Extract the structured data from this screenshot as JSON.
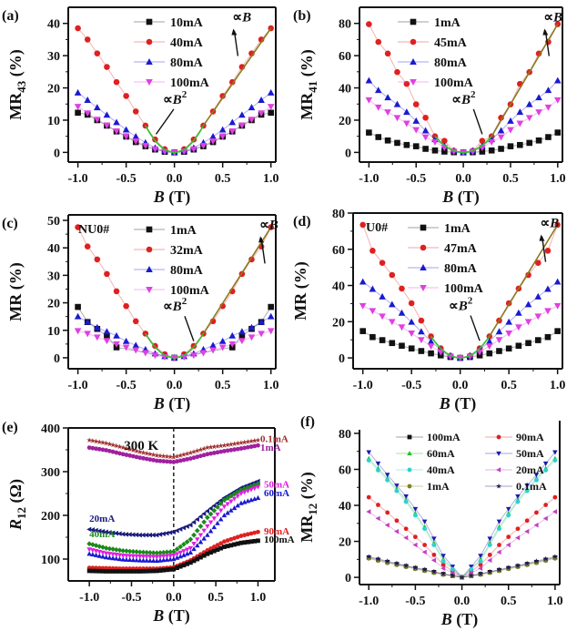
{
  "chart_data": [
    {
      "panel": "(a)",
      "type": "scatter",
      "xlabel": "B (T)",
      "ylabel": "MR43 (%)",
      "xlim": [
        -1.1,
        1.05
      ],
      "ylim": [
        -3,
        45
      ],
      "xticks": [
        -1.0,
        -0.5,
        0.0,
        0.5,
        1.0
      ],
      "yticks": [
        0,
        10,
        20,
        30,
        40
      ],
      "legend": "top-center",
      "annotations": [
        "∝B",
        "∝B²"
      ],
      "x": [
        -1.0,
        -0.9,
        -0.8,
        -0.7,
        -0.6,
        -0.5,
        -0.4,
        -0.3,
        -0.2,
        -0.1,
        0.0,
        0.1,
        0.2,
        0.3,
        0.4,
        0.5,
        0.6,
        0.7,
        0.8,
        0.9,
        1.0
      ],
      "series": [
        {
          "name": "10mA",
          "marker": "square",
          "color": "#111111",
          "values": [
            12.3,
            11.7,
            10.0,
            8.3,
            6.5,
            4.9,
            3.2,
            1.9,
            0.9,
            0.2,
            0,
            0.2,
            0.9,
            1.9,
            3.2,
            4.9,
            6.5,
            8.3,
            10.0,
            11.7,
            12.3
          ]
        },
        {
          "name": "40mA",
          "marker": "circle",
          "color": "#e02020",
          "values": [
            38.5,
            35.0,
            30.7,
            26.5,
            21.8,
            17.5,
            12.7,
            8.3,
            4.0,
            1.0,
            0,
            1.0,
            4.0,
            8.3,
            12.7,
            17.5,
            21.8,
            26.5,
            30.7,
            35.0,
            38.5
          ]
        },
        {
          "name": "80mA",
          "marker": "triangle-up",
          "color": "#1a1ad0",
          "values": [
            18.5,
            16.2,
            13.9,
            11.6,
            9.3,
            7.0,
            4.9,
            3.0,
            1.4,
            0.4,
            0,
            0.4,
            1.4,
            3.0,
            4.9,
            7.0,
            9.3,
            11.6,
            13.9,
            16.2,
            18.5
          ]
        },
        {
          "name": "100mA",
          "marker": "triangle-down",
          "color": "#e040e0",
          "values": [
            14.2,
            12.2,
            10.2,
            8.4,
            6.6,
            5.0,
            3.5,
            2.1,
            1.0,
            0.3,
            0,
            0.3,
            1.0,
            2.1,
            3.5,
            5.0,
            6.6,
            8.4,
            10.2,
            12.2,
            14.2
          ]
        }
      ]
    },
    {
      "panel": "(b)",
      "type": "scatter",
      "xlabel": "B (T)",
      "ylabel": "MR41 (%)",
      "xlim": [
        -1.1,
        1.05
      ],
      "ylim": [
        -6,
        90
      ],
      "xticks": [
        -1.0,
        -0.5,
        0.0,
        0.5,
        1.0
      ],
      "yticks": [
        0,
        20,
        40,
        60,
        80
      ],
      "legend": "top-center",
      "annotations": [
        "∝B",
        "∝B²"
      ],
      "x": [
        -1.0,
        -0.9,
        -0.8,
        -0.7,
        -0.6,
        -0.5,
        -0.4,
        -0.3,
        -0.2,
        -0.1,
        0.0,
        0.1,
        0.2,
        0.3,
        0.4,
        0.5,
        0.6,
        0.7,
        0.8,
        0.9,
        1.0
      ],
      "series": [
        {
          "name": "1mA",
          "marker": "square",
          "color": "#111111",
          "values": [
            12.3,
            9.5,
            7.4,
            5.9,
            4.6,
            3.8,
            2.2,
            1.2,
            0.5,
            0.1,
            0,
            0.1,
            0.5,
            1.2,
            2.2,
            3.8,
            4.6,
            5.9,
            7.4,
            9.5,
            12.3
          ]
        },
        {
          "name": "45mA",
          "marker": "circle",
          "color": "#e02020",
          "values": [
            79.5,
            68.5,
            61.3,
            49.8,
            42.5,
            29.8,
            21.5,
            10.0,
            7.2,
            1.0,
            0,
            1.0,
            7.2,
            10.0,
            21.5,
            29.8,
            42.5,
            49.8,
            61.3,
            68.5,
            79.5
          ]
        },
        {
          "name": "80mA",
          "marker": "triangle-up",
          "color": "#1a1ad0",
          "values": [
            44.5,
            38.5,
            34.0,
            29.8,
            25.0,
            19.5,
            13.5,
            8.0,
            4.0,
            1.0,
            0,
            1.0,
            4.0,
            8.0,
            13.5,
            19.5,
            25.0,
            29.8,
            34.0,
            38.5,
            44.5
          ]
        },
        {
          "name": "100mA",
          "marker": "triangle-down",
          "color": "#e040e0",
          "values": [
            32.5,
            28.0,
            25.0,
            21.5,
            18.0,
            14.0,
            9.5,
            6.5,
            3.0,
            0.6,
            0,
            0.6,
            3.0,
            6.5,
            9.5,
            14.0,
            18.0,
            21.5,
            25.0,
            28.0,
            32.5
          ]
        }
      ]
    },
    {
      "panel": "(c)",
      "type": "scatter",
      "xlabel": "B (T)",
      "ylabel": "MR (%)",
      "xlim": [
        -1.1,
        1.05
      ],
      "ylim": [
        -4,
        52
      ],
      "xticks": [
        -1.0,
        -0.5,
        0.0,
        0.5,
        1.0
      ],
      "yticks": [
        0,
        10,
        20,
        30,
        40,
        50
      ],
      "legend": "top-center",
      "sample_label": "NU0#",
      "annotations": [
        "∝B",
        "∝B²"
      ],
      "x": [
        -1.0,
        -0.9,
        -0.8,
        -0.7,
        -0.6,
        -0.5,
        -0.4,
        -0.3,
        -0.2,
        -0.1,
        0.0,
        0.1,
        0.2,
        0.3,
        0.4,
        0.5,
        0.6,
        0.7,
        0.8,
        0.9,
        1.0
      ],
      "series": [
        {
          "name": "1mA",
          "marker": "square",
          "color": "#111111",
          "values": [
            18.5,
            13.0,
            10.5,
            8.0,
            3.8,
            null,
            null,
            null,
            null,
            null,
            0,
            null,
            null,
            null,
            null,
            null,
            3.8,
            8.0,
            10.5,
            13.0,
            18.5
          ]
        },
        {
          "name": "32mA",
          "marker": "circle",
          "color": "#e02020",
          "values": [
            47.5,
            40.5,
            35.8,
            30.5,
            24.2,
            18.8,
            13.3,
            8.8,
            4.3,
            1.3,
            0,
            1.3,
            4.3,
            8.8,
            13.3,
            18.8,
            24.2,
            30.5,
            35.8,
            40.5,
            47.5
          ]
        },
        {
          "name": "80mA",
          "marker": "triangle-up",
          "color": "#1a1ad0",
          "values": [
            15.0,
            13.0,
            11.0,
            9.5,
            8.0,
            6.0,
            4.5,
            3.0,
            1.5,
            0.5,
            0,
            0.5,
            1.5,
            3.0,
            4.5,
            6.0,
            8.0,
            9.5,
            11.0,
            13.0,
            15.0
          ]
        },
        {
          "name": "100mA",
          "marker": "triangle-down",
          "color": "#e040e0",
          "values": [
            9.8,
            8.8,
            7.5,
            6.2,
            5.0,
            3.8,
            2.8,
            1.8,
            0.9,
            0.3,
            0,
            0.3,
            0.9,
            1.8,
            2.8,
            3.8,
            5.0,
            6.2,
            7.5,
            8.8,
            9.8
          ]
        }
      ]
    },
    {
      "panel": "(d)",
      "type": "scatter",
      "xlabel": "B (T)",
      "ylabel": "MR (%)",
      "xlim": [
        -1.1,
        1.05
      ],
      "ylim": [
        -6,
        80
      ],
      "xticks": [
        -1.0,
        -0.5,
        0.0,
        0.5,
        1.0
      ],
      "yticks": [
        0,
        20,
        40,
        60,
        80
      ],
      "legend": "top-center",
      "sample_label": "U0#",
      "annotations": [
        "∝B",
        "∝B²"
      ],
      "x": [
        -1.0,
        -0.9,
        -0.8,
        -0.7,
        -0.6,
        -0.5,
        -0.4,
        -0.3,
        -0.2,
        -0.1,
        0.0,
        0.1,
        0.2,
        0.3,
        0.4,
        0.5,
        0.6,
        0.7,
        0.8,
        0.9,
        1.0
      ],
      "series": [
        {
          "name": "1mA",
          "marker": "square",
          "color": "#111111",
          "values": [
            14.8,
            11.5,
            9.8,
            8.2,
            6.7,
            5.2,
            3.8,
            2.5,
            1.4,
            0.5,
            0,
            0.5,
            1.4,
            2.5,
            3.8,
            5.2,
            6.7,
            8.2,
            9.8,
            11.5,
            14.8
          ]
        },
        {
          "name": "47mA",
          "marker": "circle",
          "color": "#e02020",
          "values": [
            73.5,
            59.2,
            52.5,
            45.8,
            38.3,
            30.2,
            20.6,
            11.9,
            5.3,
            1.2,
            0,
            1.2,
            5.3,
            11.9,
            20.6,
            30.2,
            38.3,
            45.8,
            52.5,
            59.2,
            73.5
          ]
        },
        {
          "name": "80mA",
          "marker": "triangle-up",
          "color": "#1a1ad0",
          "values": [
            42.0,
            38.0,
            33.8,
            29.5,
            24.8,
            19.8,
            14.5,
            9.0,
            4.5,
            1.2,
            0,
            1.2,
            4.5,
            9.0,
            14.5,
            19.8,
            24.8,
            29.5,
            33.8,
            38.0,
            42.0
          ]
        },
        {
          "name": "100mA",
          "marker": "triangle-down",
          "color": "#e040e0",
          "values": [
            28.8,
            26.0,
            23.0,
            20.0,
            17.0,
            13.6,
            10.0,
            6.5,
            3.2,
            0.8,
            0,
            0.8,
            3.2,
            6.5,
            10.0,
            13.6,
            17.0,
            20.0,
            23.0,
            26.0,
            28.8
          ]
        }
      ]
    },
    {
      "panel": "(e)",
      "type": "scatter",
      "xlabel": "B (T)",
      "ylabel": "R12 (Ω)",
      "xlim": [
        -1.25,
        1.2
      ],
      "ylim": [
        50,
        400
      ],
      "xticks": [
        -1.0,
        -0.5,
        0.0,
        0.5,
        1.0
      ],
      "yticks": [
        100,
        200,
        300,
        400
      ],
      "annotations": [
        "300 K"
      ],
      "reference_line": {
        "x": 0.0,
        "style": "dashed"
      },
      "x": [
        -1.0,
        -0.8,
        -0.6,
        -0.4,
        -0.2,
        0.0,
        0.2,
        0.4,
        0.6,
        0.8,
        1.0
      ],
      "series": [
        {
          "name": "0.1mA",
          "marker": "star",
          "color": "#a03030",
          "values": [
            372,
            365,
            355,
            345,
            337,
            333,
            343,
            355,
            360,
            366,
            372
          ]
        },
        {
          "name": "1mA",
          "marker": "circle",
          "color": "#a020a0",
          "values": [
            355,
            349,
            340,
            332,
            325,
            322,
            330,
            340,
            347,
            353,
            360
          ]
        },
        {
          "name": "20mA",
          "marker": "triangle-left",
          "color": "#1a1a80",
          "values": [
            168,
            162,
            157,
            155,
            155,
            162,
            178,
            210,
            240,
            263,
            278
          ]
        },
        {
          "name": "40mA",
          "marker": "diamond",
          "color": "#1a8a1a",
          "values": [
            135,
            125,
            119,
            116,
            114,
            117,
            145,
            195,
            235,
            258,
            272
          ]
        },
        {
          "name": "50mA",
          "marker": "triangle-down",
          "color": "#e020e0",
          "values": [
            122,
            113,
            108,
            106,
            105,
            108,
            125,
            175,
            220,
            250,
            265
          ]
        },
        {
          "name": "60mA",
          "marker": "triangle-up",
          "color": "#1a1ad0",
          "values": [
            112,
            104,
            99,
            97,
            96,
            100,
            115,
            155,
            200,
            228,
            240
          ]
        },
        {
          "name": "90mA",
          "marker": "circle",
          "color": "#e02020",
          "values": [
            80,
            79,
            78,
            78,
            78,
            81,
            97,
            120,
            140,
            153,
            162
          ]
        },
        {
          "name": "100mA",
          "marker": "square",
          "color": "#111111",
          "values": [
            73,
            72,
            72,
            72,
            73,
            77,
            92,
            112,
            128,
            137,
            142
          ]
        }
      ]
    },
    {
      "panel": "(f)",
      "type": "scatter",
      "xlabel": "B (T)",
      "ylabel": "MR12 (%)",
      "xlim": [
        -1.1,
        1.05
      ],
      "ylim": [
        -4,
        82
      ],
      "xticks": [
        -1.0,
        -0.5,
        0.0,
        0.5,
        1.0
      ],
      "yticks": [
        0,
        20,
        40,
        60,
        80
      ],
      "legend": "top-center, two columns",
      "x": [
        -1.0,
        -0.8,
        -0.6,
        -0.4,
        -0.2,
        0.0,
        0.2,
        0.4,
        0.6,
        0.8,
        1.0
      ],
      "series": [
        {
          "name": "100mA",
          "marker": "square",
          "color": "#111111",
          "values": [
            11,
            8.5,
            6.2,
            4,
            1.8,
            0,
            1.8,
            4,
            6.2,
            8.5,
            11
          ]
        },
        {
          "name": "90mA",
          "marker": "circle",
          "color": "#e02020",
          "values": [
            44.5,
            36,
            27,
            18,
            7,
            0,
            7,
            18,
            27,
            36,
            44.5
          ]
        },
        {
          "name": "60mA",
          "marker": "triangle-up",
          "color": "#20c020",
          "values": [
            66,
            55,
            43,
            28,
            10,
            0,
            10,
            28,
            43,
            55,
            66
          ]
        },
        {
          "name": "50mA",
          "marker": "triangle-down",
          "color": "#1a1ab0",
          "values": [
            69.5,
            57,
            45,
            31,
            12,
            0,
            12,
            31,
            45,
            57,
            69.5
          ]
        },
        {
          "name": "40mA",
          "marker": "circle",
          "color": "#30d0d0",
          "values": [
            65,
            54,
            42,
            27,
            9,
            0,
            9,
            27,
            42,
            54,
            65
          ]
        },
        {
          "name": "20mA",
          "marker": "triangle-left",
          "color": "#c040c0",
          "values": [
            36.5,
            29,
            22,
            14,
            5,
            0,
            5,
            14,
            22,
            29,
            36.5
          ]
        },
        {
          "name": "1mA",
          "marker": "circle",
          "color": "#808020",
          "values": [
            10.5,
            8,
            5.8,
            3.6,
            1.5,
            0,
            1.5,
            3.6,
            5.8,
            8,
            10.5
          ]
        },
        {
          "name": "0.1mA",
          "marker": "star",
          "color": "#1a1a60",
          "values": [
            11.5,
            9,
            6.5,
            4.3,
            2,
            0,
            2,
            4.3,
            6.5,
            9,
            11.5
          ]
        }
      ]
    }
  ],
  "labels": {
    "panels": [
      "(a)",
      "(b)",
      "(c)",
      "(d)",
      "(e)",
      "(f)"
    ],
    "xtitle": "B",
    "xunit": "(T)",
    "ytitles": {
      "a": {
        "main": "MR",
        "sub": "43",
        "unit": "(%)"
      },
      "b": {
        "main": "MR",
        "sub": "41",
        "unit": "(%)"
      },
      "c": {
        "main": "MR",
        "sub": "",
        "unit": "(%)"
      },
      "d": {
        "main": "MR",
        "sub": "",
        "unit": "(%)"
      },
      "e": {
        "main": "R",
        "sub": "12",
        "unit": "(Ω)"
      },
      "f": {
        "main": "MR",
        "sub": "12",
        "unit": "(%)"
      }
    },
    "propB": "∝B",
    "propB2": "∝B",
    "sup2": "2",
    "temp": "300 K"
  }
}
